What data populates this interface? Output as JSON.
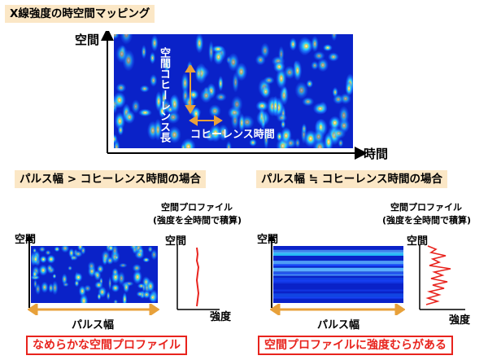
{
  "title": "X線強度の時空間マッピング",
  "main_plot": {
    "y_label": "空間",
    "x_label": "時間",
    "coherence_length_label": "空間コヒーレンス長",
    "coherence_time_label": "コヒーレンス時間"
  },
  "left_panel": {
    "heading": "パルス幅 > コヒーレンス時間の場合",
    "y_label": "空間",
    "pulse_width_label": "パルス幅",
    "profile_caption_line1": "空間プロファイル",
    "profile_caption_line2": "(強度を全時間で積算)",
    "profile_y_label": "空間",
    "profile_x_label": "強度",
    "conclusion": "なめらかな空間プロファイル"
  },
  "right_panel": {
    "heading": "パルス幅 ≒ コヒーレンス時間の場合",
    "y_label": "空間",
    "pulse_width_label": "パルス幅",
    "profile_caption_line1": "空間プロファイル",
    "profile_caption_line2": "(強度を全時間で積算)",
    "profile_y_label": "空間",
    "profile_x_label": "強度",
    "conclusion": "空間プロファイルに強度むらがある"
  },
  "colors": {
    "map_background": "#0a22c8",
    "arrow_orange": "#e8a13a",
    "profile_red": "#e8231d",
    "header_bg": "#fbe7c6"
  }
}
